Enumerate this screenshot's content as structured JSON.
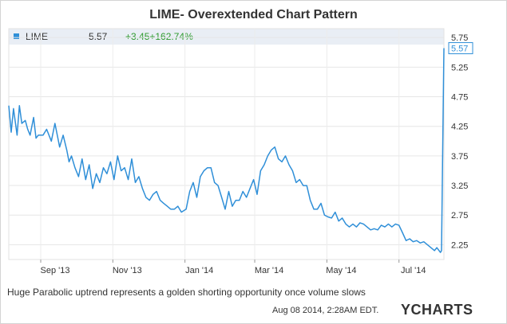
{
  "chart_data": {
    "type": "line",
    "title": "LIME- Overextended Chart Pattern",
    "ticker": "LIME",
    "last_value": "5.57",
    "change": "+3.45+162.74%",
    "ylim": [
      2.0,
      5.9
    ],
    "yticks": [
      "5.75",
      "5.25",
      "4.75",
      "4.25",
      "3.75",
      "3.25",
      "2.75",
      "2.25"
    ],
    "xticks": [
      "Sep '13",
      "Nov '13",
      "Jan '14",
      "Mar '14",
      "May '14",
      "Jul '14"
    ],
    "x_range": [
      "2013-08-05",
      "2014-08-08"
    ],
    "end_label": "5.57",
    "grid": true,
    "line_color": "#2f8fd8",
    "series": [
      {
        "x": [
          "2013-08-05",
          "2013-08-07",
          "2013-08-09",
          "2013-08-12",
          "2013-08-14",
          "2013-08-16",
          "2013-08-19",
          "2013-08-21",
          "2013-08-23",
          "2013-08-26",
          "2013-08-28",
          "2013-08-30",
          "2013-09-03",
          "2013-09-06",
          "2013-09-10",
          "2013-09-13",
          "2013-09-17",
          "2013-09-20",
          "2013-09-23",
          "2013-09-25",
          "2013-09-27",
          "2013-09-30",
          "2013-10-03",
          "2013-10-06",
          "2013-10-09",
          "2013-10-12",
          "2013-10-15",
          "2013-10-18",
          "2013-10-21",
          "2013-10-24",
          "2013-10-27",
          "2013-10-30",
          "2013-11-02",
          "2013-11-05",
          "2013-11-08",
          "2013-11-11",
          "2013-11-14",
          "2013-11-17",
          "2013-11-20",
          "2013-11-23",
          "2013-11-26",
          "2013-11-29",
          "2013-12-02",
          "2013-12-05",
          "2013-12-08",
          "2013-12-11",
          "2013-12-14",
          "2013-12-17",
          "2013-12-20",
          "2013-12-23",
          "2013-12-26",
          "2013-12-29",
          "2014-01-02",
          "2014-01-05",
          "2014-01-08",
          "2014-01-11",
          "2014-01-14",
          "2014-01-17",
          "2014-01-20",
          "2014-01-23",
          "2014-01-26",
          "2014-01-29",
          "2014-02-01",
          "2014-02-04",
          "2014-02-07",
          "2014-02-10",
          "2014-02-13",
          "2014-02-16",
          "2014-02-19",
          "2014-02-22",
          "2014-02-25",
          "2014-02-28",
          "2014-03-03",
          "2014-03-06",
          "2014-03-09",
          "2014-03-12",
          "2014-03-15",
          "2014-03-18",
          "2014-03-21",
          "2014-03-24",
          "2014-03-27",
          "2014-03-30",
          "2014-04-02",
          "2014-04-05",
          "2014-04-08",
          "2014-04-11",
          "2014-04-14",
          "2014-04-17",
          "2014-04-20",
          "2014-04-23",
          "2014-04-26",
          "2014-04-29",
          "2014-05-02",
          "2014-05-05",
          "2014-05-08",
          "2014-05-11",
          "2014-05-14",
          "2014-05-17",
          "2014-05-20",
          "2014-05-23",
          "2014-05-26",
          "2014-05-29",
          "2014-06-01",
          "2014-06-04",
          "2014-06-07",
          "2014-06-10",
          "2014-06-13",
          "2014-06-16",
          "2014-06-19",
          "2014-06-22",
          "2014-06-25",
          "2014-06-28",
          "2014-07-01",
          "2014-07-04",
          "2014-07-07",
          "2014-07-10",
          "2014-07-13",
          "2014-07-16",
          "2014-07-19",
          "2014-07-22",
          "2014-07-25",
          "2014-07-28",
          "2014-07-31",
          "2014-08-02",
          "2014-08-05",
          "2014-08-06",
          "2014-08-07",
          "2014-08-08"
        ],
        "values": [
          4.6,
          4.15,
          4.55,
          4.1,
          4.6,
          4.3,
          4.35,
          4.2,
          4.1,
          4.4,
          4.05,
          4.1,
          4.1,
          4.2,
          4.0,
          4.3,
          3.9,
          4.1,
          3.85,
          3.65,
          3.75,
          3.55,
          3.4,
          3.7,
          3.35,
          3.6,
          3.2,
          3.45,
          3.3,
          3.55,
          3.45,
          3.65,
          3.35,
          3.75,
          3.5,
          3.55,
          3.35,
          3.7,
          3.3,
          3.4,
          3.2,
          3.05,
          3.0,
          3.1,
          3.15,
          3.0,
          2.95,
          2.9,
          2.85,
          2.85,
          2.9,
          2.8,
          2.85,
          3.15,
          3.3,
          3.05,
          3.4,
          3.5,
          3.55,
          3.55,
          3.3,
          3.25,
          3.05,
          2.85,
          3.15,
          2.9,
          3.0,
          3.0,
          3.15,
          3.05,
          3.2,
          3.35,
          3.1,
          3.5,
          3.6,
          3.75,
          3.85,
          3.9,
          3.7,
          3.65,
          3.75,
          3.6,
          3.5,
          3.3,
          3.35,
          3.25,
          3.25,
          3.0,
          2.85,
          2.85,
          2.95,
          2.75,
          2.72,
          2.7,
          2.8,
          2.65,
          2.7,
          2.6,
          2.55,
          2.6,
          2.55,
          2.62,
          2.6,
          2.55,
          2.5,
          2.52,
          2.5,
          2.58,
          2.55,
          2.6,
          2.55,
          2.6,
          2.58,
          2.45,
          2.32,
          2.35,
          2.3,
          2.32,
          2.28,
          2.3,
          2.25,
          2.2,
          2.15,
          2.2,
          2.12,
          2.15,
          3.9,
          5.57
        ]
      }
    ]
  },
  "caption": "Huge Parabolic uptrend represents a golden shorting opportunity once volume slows",
  "timestamp": "Aug 08 2014, 2:28AM EDT.",
  "powered_by": "Powered by",
  "brand": "YCHARTS"
}
